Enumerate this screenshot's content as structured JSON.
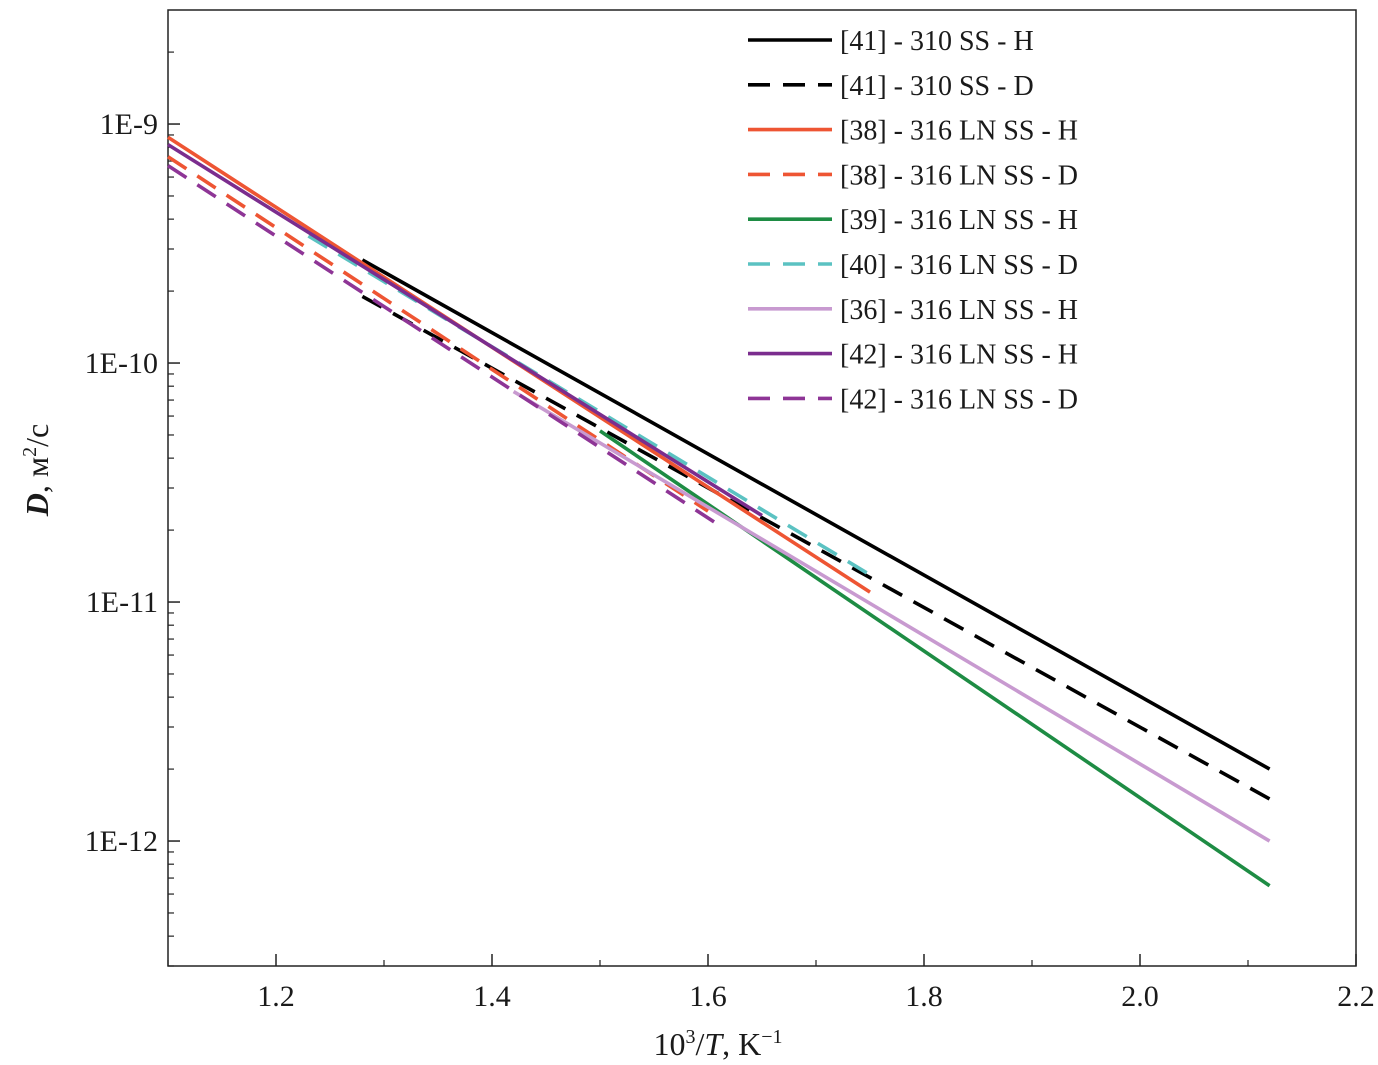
{
  "chart_data": {
    "type": "line",
    "x_axis": {
      "label_base": "10",
      "label_sup": "3",
      "label_slash": "/",
      "label_var": "T",
      "label_unit": ", K",
      "label_unit_sup": "−1",
      "range": [
        1.1,
        2.2
      ],
      "ticks": [
        1.2,
        1.4,
        1.6,
        1.8,
        2.0,
        2.2
      ],
      "tick_labels": [
        "1.2",
        "1.4",
        "1.6",
        "1.8",
        "2.0",
        "2.2"
      ]
    },
    "y_axis": {
      "label_var": "D",
      "label_unit": ", м",
      "label_unit_sup": "2",
      "label_unit_tail": "/c",
      "scale": "log",
      "range": [
        3e-13,
        3e-09
      ],
      "ticks": [
        1e-12,
        1e-11,
        1e-10,
        1e-09
      ],
      "tick_labels": [
        "1E-12",
        "1E-11",
        "1E-10",
        "1E-9"
      ]
    },
    "grid": false,
    "legend_position": "top-right",
    "series": [
      {
        "name": "[41] - 310 SS - H",
        "color": "#000000",
        "dash": "solid",
        "x": [
          1.28,
          2.12
        ],
        "y": [
          2.7e-10,
          2e-12
        ]
      },
      {
        "name": "[41] - 310 SS - D",
        "color": "#000000",
        "dash": "dashed",
        "x": [
          1.28,
          2.12
        ],
        "y": [
          1.9e-10,
          1.5e-12
        ]
      },
      {
        "name": "[38] - 316 LN SS - H",
        "color": "#ee5533",
        "dash": "solid",
        "x": [
          1.1,
          1.75
        ],
        "y": [
          8.8e-10,
          1.1e-11
        ]
      },
      {
        "name": "[38] - 316 LN SS - D",
        "color": "#ee5533",
        "dash": "dashed",
        "x": [
          1.1,
          1.6
        ],
        "y": [
          7.3e-10,
          2.4e-11
        ]
      },
      {
        "name": "[39] - 316 LN SS - H",
        "color": "#1e8c44",
        "dash": "solid",
        "x": [
          1.5,
          2.12
        ],
        "y": [
          5.2e-11,
          6.5e-13
        ]
      },
      {
        "name": "[40] - 316 LN SS - D",
        "color": "#5bc2c2",
        "dash": "dashed",
        "x": [
          1.23,
          1.75
        ],
        "y": [
          3.4e-10,
          1.3e-11
        ]
      },
      {
        "name": "[36] - 316 LN SS - H",
        "color": "#c89ad0",
        "dash": "solid",
        "x": [
          1.42,
          2.12
        ],
        "y": [
          7.6e-11,
          1e-12
        ]
      },
      {
        "name": "[42] - 316 LN SS - H",
        "color": "#7b2d8e",
        "dash": "solid",
        "x": [
          1.1,
          1.65
        ],
        "y": [
          8.2e-10,
          2.3e-11
        ]
      },
      {
        "name": "[42] - 316 LN SS - D",
        "color": "#8e3596",
        "dash": "dashed",
        "x": [
          1.1,
          1.61
        ],
        "y": [
          6.7e-10,
          2.1e-11
        ]
      }
    ]
  }
}
